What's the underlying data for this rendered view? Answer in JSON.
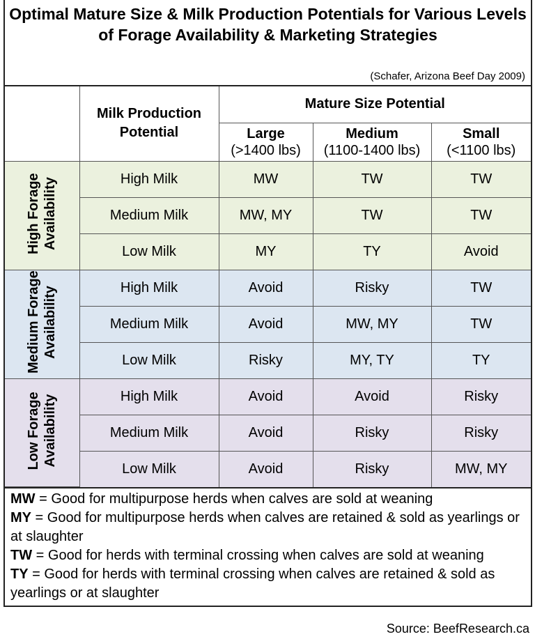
{
  "title": "Optimal Mature Size & Milk Production Potentials for Various Levels of Forage Availability & Marketing Strategies",
  "citation": "(Schafer, Arizona Beef Day 2009)",
  "header": {
    "milk": "Milk Production Potential",
    "mature": "Mature Size Potential",
    "sizes": [
      {
        "name": "Large",
        "range": "(>1400 lbs)"
      },
      {
        "name": "Medium",
        "range": "(1100-1400 lbs)"
      },
      {
        "name": "Small",
        "range": "(<1100 lbs)"
      }
    ]
  },
  "groups": [
    {
      "label": "High Forage Availability",
      "color": "#ebf1de",
      "rows": [
        {
          "milk": "High Milk",
          "values": [
            "MW",
            "TW",
            "TW"
          ]
        },
        {
          "milk": "Medium Milk",
          "values": [
            "MW, MY",
            "TW",
            "TW"
          ]
        },
        {
          "milk": "Low Milk",
          "values": [
            "MY",
            "TY",
            "Avoid"
          ]
        }
      ]
    },
    {
      "label": "Medium Forage Availability",
      "color": "#dce6f1",
      "rows": [
        {
          "milk": "High Milk",
          "values": [
            "Avoid",
            "Risky",
            "TW"
          ]
        },
        {
          "milk": "Medium Milk",
          "values": [
            "Avoid",
            "MW, MY",
            "TW"
          ]
        },
        {
          "milk": "Low Milk",
          "values": [
            "Risky",
            "MY, TY",
            "TY"
          ]
        }
      ]
    },
    {
      "label": "Low Forage Availability",
      "color": "#e4dfec",
      "rows": [
        {
          "milk": "High Milk",
          "values": [
            "Avoid",
            "Avoid",
            "Risky"
          ]
        },
        {
          "milk": "Medium Milk",
          "values": [
            "Avoid",
            "Risky",
            "Risky"
          ]
        },
        {
          "milk": "Low Milk",
          "values": [
            "Avoid",
            "Risky",
            "MW, MY"
          ]
        }
      ]
    }
  ],
  "legend": [
    {
      "code": "MW",
      "text": " = Good for multipurpose herds when calves are sold at weaning"
    },
    {
      "code": "MY",
      "text": " = Good for multipurpose herds when calves are retained & sold as yearlings or at slaughter"
    },
    {
      "code": "TW",
      "text": " = Good for herds with terminal crossing when calves are sold at weaning"
    },
    {
      "code": "TY",
      "text": " = Good for herds with terminal crossing when calves are retained & sold as yearlings or at slaughter"
    }
  ],
  "source": "Source: BeefResearch.ca"
}
